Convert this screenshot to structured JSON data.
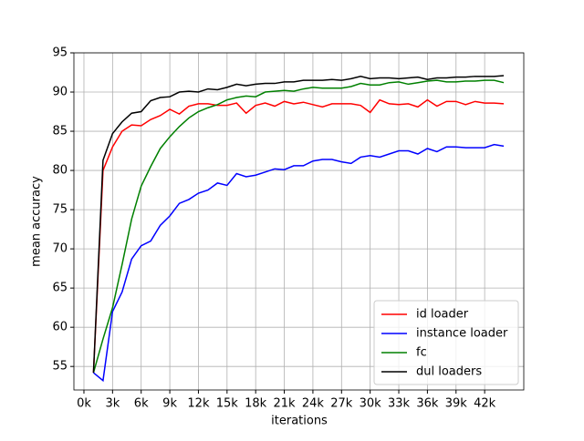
{
  "chart_data": {
    "type": "line",
    "xlabel": "iterations",
    "ylabel": "mean accuracy",
    "x": [
      1000,
      2000,
      3000,
      4000,
      5000,
      6000,
      7000,
      8000,
      9000,
      10000,
      11000,
      12000,
      13000,
      14000,
      15000,
      16000,
      17000,
      18000,
      19000,
      20000,
      21000,
      22000,
      23000,
      24000,
      25000,
      26000,
      27000,
      28000,
      29000,
      30000,
      31000,
      32000,
      33000,
      34000,
      35000,
      36000,
      37000,
      38000,
      39000,
      40000,
      41000,
      42000,
      43000,
      44000
    ],
    "series": [
      {
        "name": "id loader",
        "color": "#ff0000",
        "values": [
          54.2,
          80,
          83,
          85,
          85.8,
          85.7,
          86.5,
          87,
          87.8,
          87.2,
          88.2,
          88.5,
          88.5,
          88.3,
          88.3,
          88.6,
          87.3,
          88.3,
          88.6,
          88.2,
          88.8,
          88.5,
          88.7,
          88.4,
          88.1,
          88.5,
          88.5,
          88.5,
          88.3,
          87.4,
          89,
          88.5,
          88.4,
          88.5,
          88.1,
          89,
          88.2,
          88.8,
          88.8,
          88.4,
          88.8,
          88.6,
          88.6,
          88.5
        ]
      },
      {
        "name": "instance loader",
        "color": "#0000ff",
        "values": [
          54.2,
          53.2,
          62,
          64.5,
          68.7,
          70.4,
          71,
          73,
          74.2,
          75.8,
          76.3,
          77.1,
          77.5,
          78.4,
          78.1,
          79.6,
          79.2,
          79.4,
          79.8,
          80.2,
          80.1,
          80.6,
          80.6,
          81.2,
          81.4,
          81.4,
          81.1,
          80.9,
          81.7,
          81.9,
          81.7,
          82.1,
          82.5,
          82.5,
          82.1,
          82.8,
          82.4,
          83,
          83,
          82.9,
          82.9,
          82.9,
          83.3,
          83.1
        ]
      },
      {
        "name": "fc",
        "color": "#008000",
        "values": [
          54.2,
          58.5,
          62.5,
          68,
          73.8,
          78,
          80.5,
          82.8,
          84.3,
          85.6,
          86.7,
          87.5,
          88,
          88.4,
          89,
          89.3,
          89.5,
          89.4,
          90,
          90.1,
          90.2,
          90.1,
          90.4,
          90.6,
          90.5,
          90.5,
          90.5,
          90.7,
          91.1,
          90.9,
          90.9,
          91.2,
          91.3,
          91,
          91.2,
          91.4,
          91.5,
          91.3,
          91.3,
          91.4,
          91.4,
          91.5,
          91.5,
          91.2
        ]
      },
      {
        "name": "dul loaders",
        "color": "#000000",
        "values": [
          54.2,
          81.3,
          84.7,
          86.2,
          87.3,
          87.5,
          88.9,
          89.3,
          89.4,
          90,
          90.1,
          90,
          90.4,
          90.3,
          90.6,
          91,
          90.8,
          91,
          91.1,
          91.1,
          91.3,
          91.3,
          91.5,
          91.5,
          91.5,
          91.6,
          91.5,
          91.7,
          92,
          91.7,
          91.8,
          91.8,
          91.7,
          91.8,
          91.9,
          91.6,
          91.8,
          91.8,
          91.9,
          91.9,
          92,
          92,
          92,
          92.1
        ]
      }
    ],
    "xlim": [
      -1050,
      46100
    ],
    "ylim": [
      52,
      95
    ],
    "xticks": [
      {
        "value": 0,
        "label": "0k"
      },
      {
        "value": 3000,
        "label": "3k"
      },
      {
        "value": 6000,
        "label": "6k"
      },
      {
        "value": 9000,
        "label": "9k"
      },
      {
        "value": 12000,
        "label": "12k"
      },
      {
        "value": 15000,
        "label": "15k"
      },
      {
        "value": 18000,
        "label": "18k"
      },
      {
        "value": 21000,
        "label": "21k"
      },
      {
        "value": 24000,
        "label": "24k"
      },
      {
        "value": 27000,
        "label": "27k"
      },
      {
        "value": 30000,
        "label": "30k"
      },
      {
        "value": 33000,
        "label": "33k"
      },
      {
        "value": 36000,
        "label": "36k"
      },
      {
        "value": 39000,
        "label": "39k"
      },
      {
        "value": 42000,
        "label": "42k"
      }
    ],
    "yticks": [
      55,
      60,
      65,
      70,
      75,
      80,
      85,
      90,
      95
    ],
    "grid": true,
    "legend": "lower right"
  }
}
